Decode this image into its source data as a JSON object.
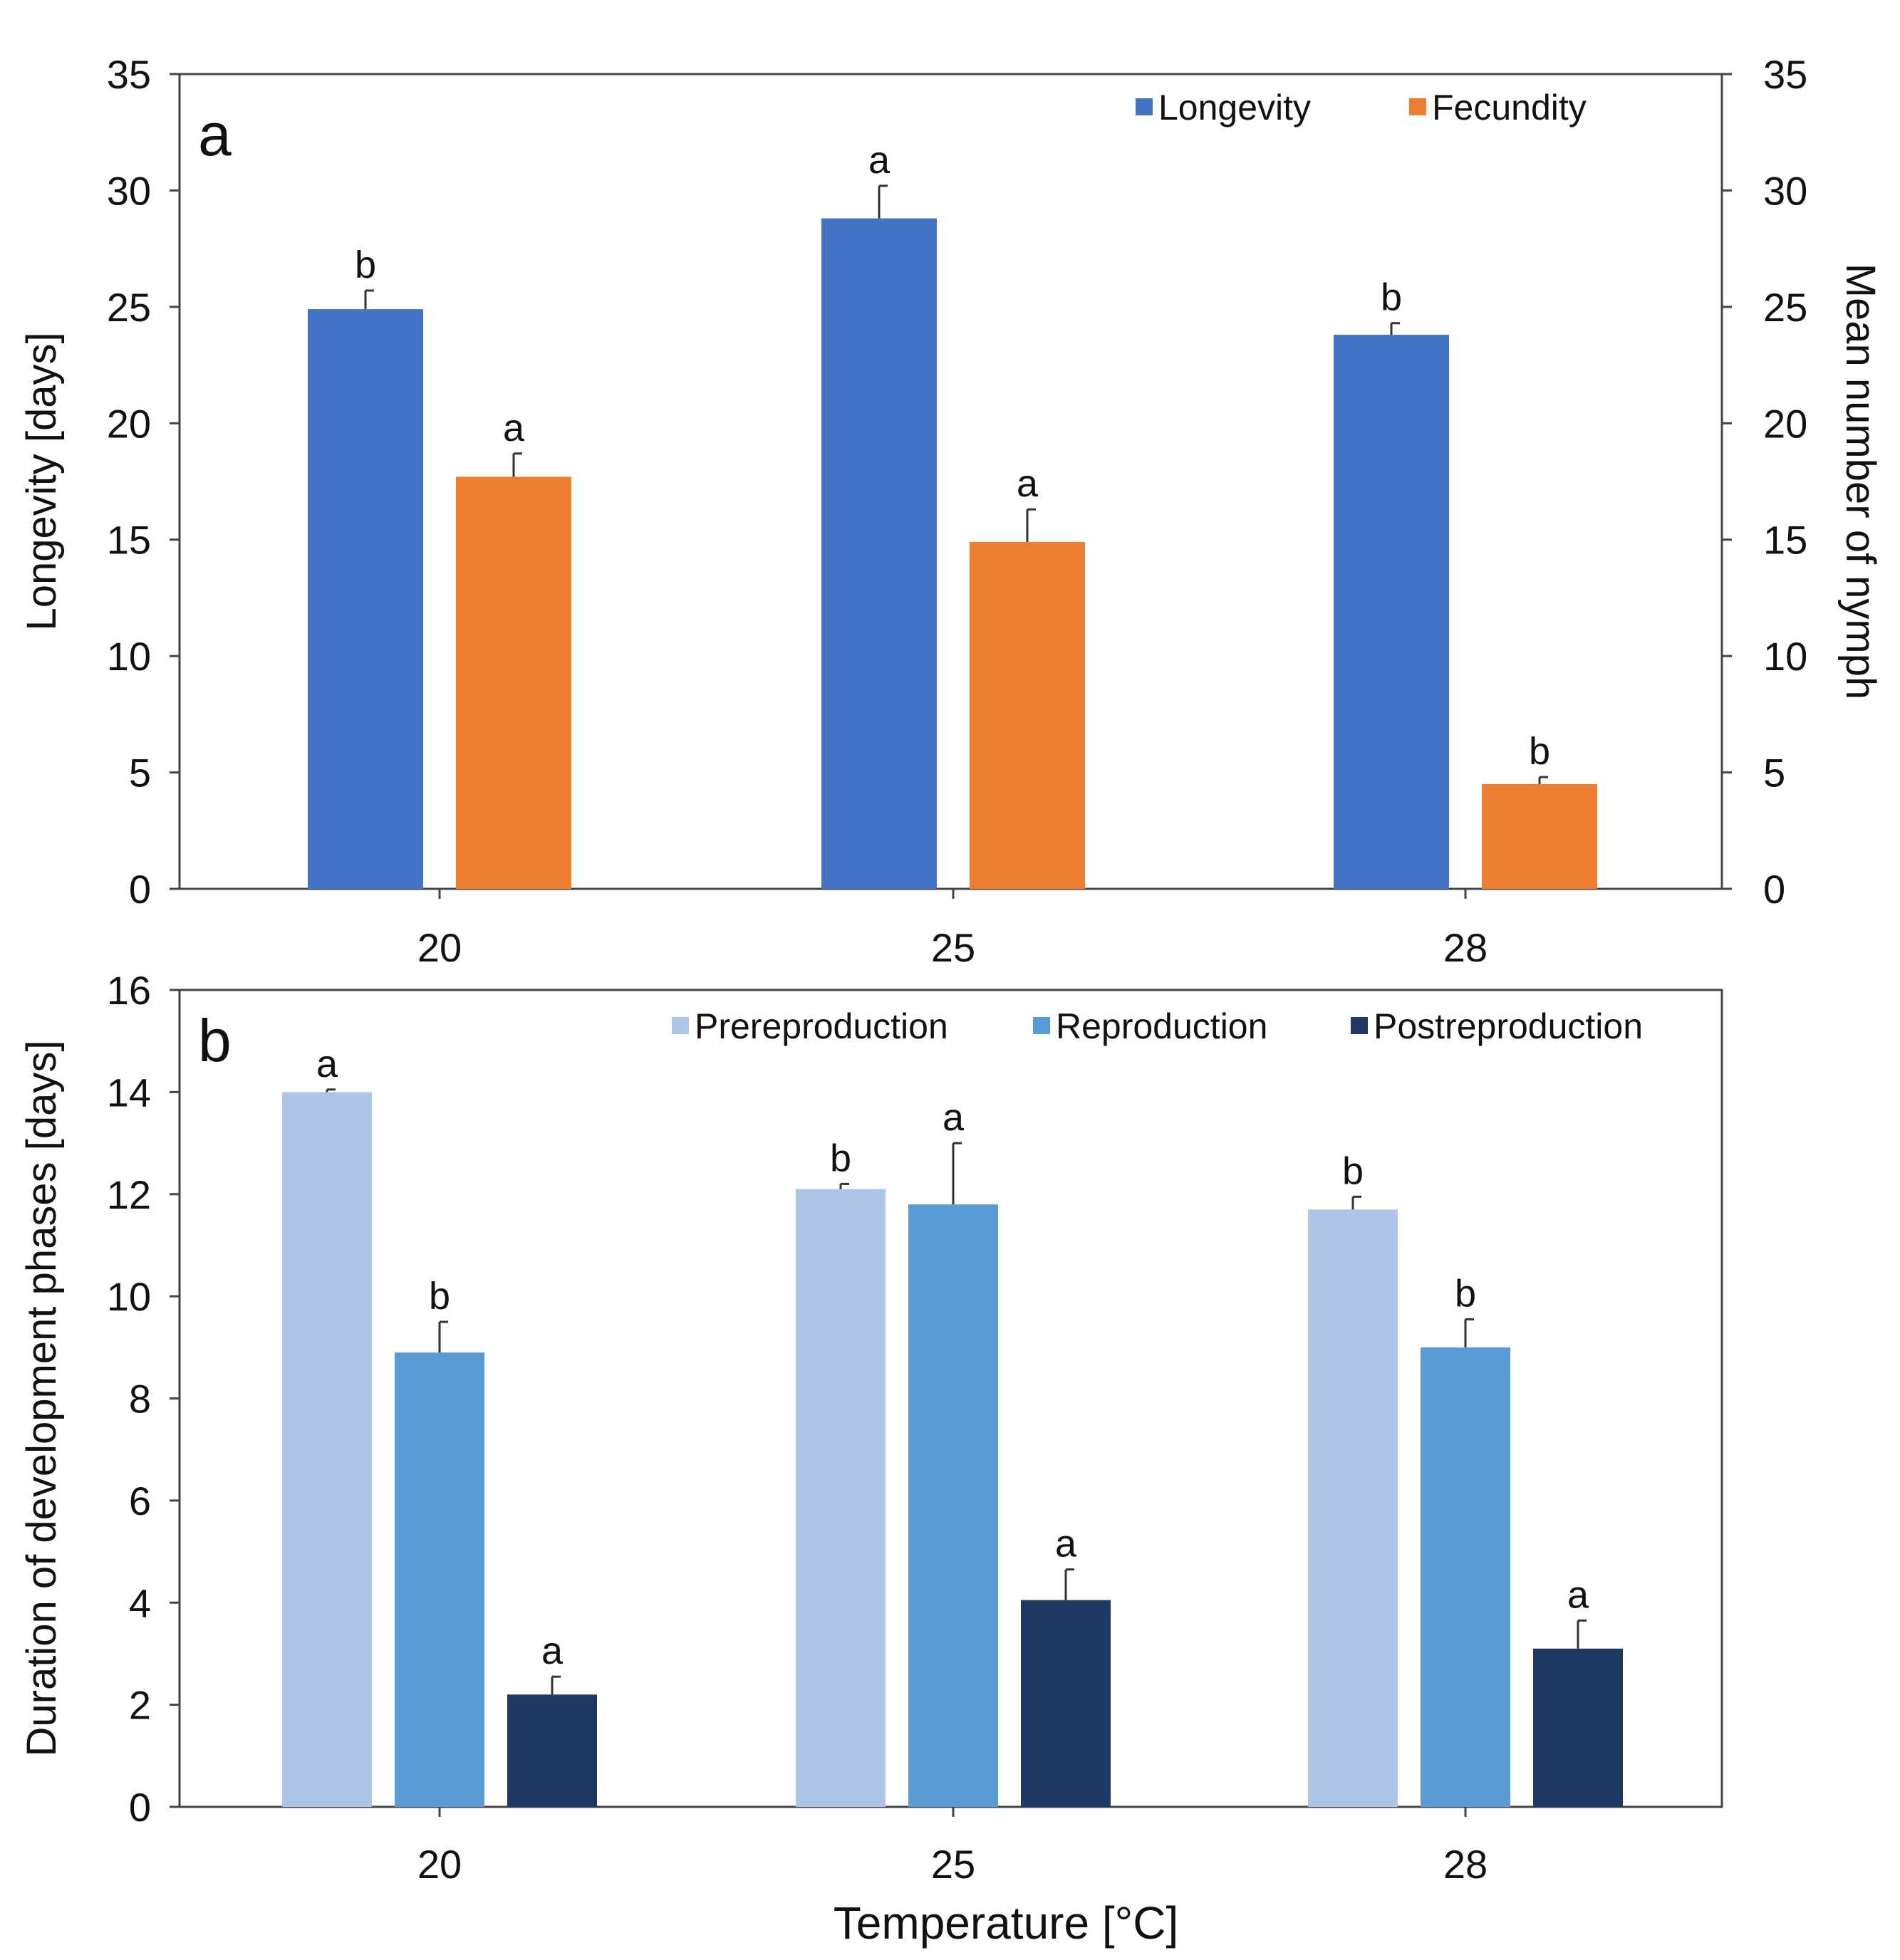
{
  "chart_data": [
    {
      "panel_label": "a",
      "type": "bar",
      "categories": [
        "20",
        "25",
        "28"
      ],
      "ylabel": "Longevity [days]",
      "y2label": "Mean number of nymph",
      "ylim": [
        0,
        35
      ],
      "y2lim": [
        0,
        35
      ],
      "yticks": [
        "0",
        "5",
        "10",
        "15",
        "20",
        "25",
        "30",
        "35"
      ],
      "y2ticks": [
        "0",
        "5",
        "10",
        "15",
        "20",
        "25",
        "30",
        "35"
      ],
      "legend_position": "top-right",
      "series": [
        {
          "name": "Longevity",
          "color": "#4472C4",
          "values": [
            24.9,
            28.8,
            23.8
          ],
          "errors": [
            0.8,
            1.4,
            0.5
          ],
          "letters": [
            "b",
            "a",
            "b"
          ]
        },
        {
          "name": "Fecundity",
          "color": "#ED7D31",
          "values": [
            17.7,
            14.9,
            4.5
          ],
          "errors": [
            1.0,
            1.4,
            0.3
          ],
          "letters": [
            "a",
            "a",
            "b"
          ]
        }
      ]
    },
    {
      "panel_label": "b",
      "type": "bar",
      "categories": [
        "20",
        "25",
        "28"
      ],
      "xlabel": "Temperature [°C]",
      "ylabel": "Duration of development phases [days]",
      "ylim": [
        0,
        16
      ],
      "yticks": [
        "0",
        "2",
        "4",
        "6",
        "8",
        "10",
        "12",
        "14",
        "16"
      ],
      "legend_position": "top-right",
      "series": [
        {
          "name": "Prereproduction",
          "color": "#ADC5E6",
          "values": [
            14.0,
            12.1,
            11.7
          ],
          "errors": [
            0.05,
            0.1,
            0.25
          ],
          "letters": [
            "a",
            "b",
            "b"
          ]
        },
        {
          "name": "Reproduction",
          "color": "#5B9BD5",
          "values": [
            8.9,
            11.8,
            9.0
          ],
          "errors": [
            0.6,
            1.2,
            0.55
          ],
          "letters": [
            "b",
            "a",
            "b"
          ]
        },
        {
          "name": "Postreproduction",
          "color": "#1F3864",
          "values": [
            2.2,
            4.05,
            3.1
          ],
          "errors": [
            0.35,
            0.6,
            0.55
          ],
          "letters": [
            "a",
            "a",
            "a"
          ]
        }
      ]
    }
  ]
}
